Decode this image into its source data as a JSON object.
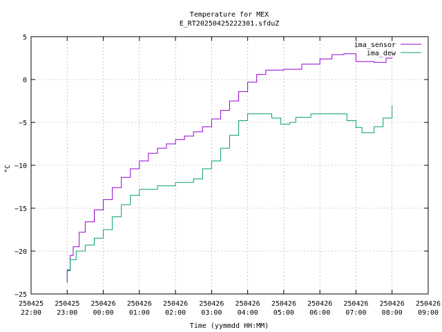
{
  "chart_data": {
    "type": "line",
    "title": "Temperature for MEX",
    "subtitle": "E_RT20250425222301.sfduZ",
    "xlabel": "Time (yymmdd HH:MM)",
    "ylabel": "°C",
    "ylim": [
      -25,
      5
    ],
    "xlim": [
      "2025-04-25 22:00",
      "2025-04-26 09:00"
    ],
    "y_ticks": [
      -25,
      -20,
      -15,
      -10,
      -5,
      0,
      5
    ],
    "x_ticks": [
      {
        "date": "250425",
        "time": "22:00"
      },
      {
        "date": "250425",
        "time": "23:00"
      },
      {
        "date": "250426",
        "time": "00:00"
      },
      {
        "date": "250426",
        "time": "01:00"
      },
      {
        "date": "250426",
        "time": "02:00"
      },
      {
        "date": "250426",
        "time": "03:00"
      },
      {
        "date": "250426",
        "time": "04:00"
      },
      {
        "date": "250426",
        "time": "05:00"
      },
      {
        "date": "250426",
        "time": "06:00"
      },
      {
        "date": "250426",
        "time": "07:00"
      },
      {
        "date": "250426",
        "time": "08:00"
      },
      {
        "date": "250426",
        "time": "09:00"
      }
    ],
    "grid": true,
    "legend_position": "top-right",
    "series": [
      {
        "name": "ima_sensor",
        "color": "#9400d3",
        "points": [
          [
            "2025-04-25 22:59",
            -23.6
          ],
          [
            "2025-04-25 23:00",
            -22.2
          ],
          [
            "2025-04-25 23:05",
            -20.5
          ],
          [
            "2025-04-25 23:10",
            -19.5
          ],
          [
            "2025-04-25 23:20",
            -17.8
          ],
          [
            "2025-04-25 23:30",
            -16.6
          ],
          [
            "2025-04-25 23:45",
            -15.2
          ],
          [
            "2025-04-26 00:00",
            -14.0
          ],
          [
            "2025-04-26 00:15",
            -12.6
          ],
          [
            "2025-04-26 00:30",
            -11.4
          ],
          [
            "2025-04-26 00:45",
            -10.4
          ],
          [
            "2025-04-26 01:00",
            -9.5
          ],
          [
            "2025-04-26 01:15",
            -8.6
          ],
          [
            "2025-04-26 01:30",
            -8.0
          ],
          [
            "2025-04-26 01:45",
            -7.5
          ],
          [
            "2025-04-26 02:00",
            -7.0
          ],
          [
            "2025-04-26 02:15",
            -6.6
          ],
          [
            "2025-04-26 02:30",
            -6.1
          ],
          [
            "2025-04-26 02:45",
            -5.5
          ],
          [
            "2025-04-26 03:00",
            -4.6
          ],
          [
            "2025-04-26 03:15",
            -3.6
          ],
          [
            "2025-04-26 03:30",
            -2.5
          ],
          [
            "2025-04-26 03:45",
            -1.4
          ],
          [
            "2025-04-26 04:00",
            -0.3
          ],
          [
            "2025-04-26 04:15",
            0.6
          ],
          [
            "2025-04-26 04:30",
            1.1
          ],
          [
            "2025-04-26 05:00",
            1.2
          ],
          [
            "2025-04-26 05:30",
            1.8
          ],
          [
            "2025-04-26 06:00",
            2.4
          ],
          [
            "2025-04-26 06:20",
            2.9
          ],
          [
            "2025-04-26 06:40",
            3.0
          ],
          [
            "2025-04-26 07:00",
            2.1
          ],
          [
            "2025-04-26 07:30",
            2.0
          ],
          [
            "2025-04-26 07:50",
            2.5
          ],
          [
            "2025-04-26 08:00",
            2.6
          ]
        ]
      },
      {
        "name": "ima_dew",
        "color": "#009e73",
        "points": [
          [
            "2025-04-25 22:59",
            -23.0
          ],
          [
            "2025-04-25 23:00",
            -22.3
          ],
          [
            "2025-04-25 23:05",
            -21.0
          ],
          [
            "2025-04-25 23:15",
            -20.0
          ],
          [
            "2025-04-25 23:30",
            -19.3
          ],
          [
            "2025-04-25 23:45",
            -18.5
          ],
          [
            "2025-04-26 00:00",
            -17.5
          ],
          [
            "2025-04-26 00:15",
            -16.0
          ],
          [
            "2025-04-26 00:30",
            -14.6
          ],
          [
            "2025-04-26 00:45",
            -13.5
          ],
          [
            "2025-04-26 01:00",
            -12.8
          ],
          [
            "2025-04-26 01:30",
            -12.4
          ],
          [
            "2025-04-26 02:00",
            -12.0
          ],
          [
            "2025-04-26 02:30",
            -11.6
          ],
          [
            "2025-04-26 02:45",
            -10.4
          ],
          [
            "2025-04-26 03:00",
            -9.5
          ],
          [
            "2025-04-26 03:15",
            -8.0
          ],
          [
            "2025-04-26 03:30",
            -6.5
          ],
          [
            "2025-04-26 03:45",
            -4.8
          ],
          [
            "2025-04-26 04:00",
            -4.0
          ],
          [
            "2025-04-26 04:20",
            -4.0
          ],
          [
            "2025-04-26 04:40",
            -4.5
          ],
          [
            "2025-04-26 04:55",
            -5.2
          ],
          [
            "2025-04-26 05:10",
            -5.0
          ],
          [
            "2025-04-26 05:20",
            -4.4
          ],
          [
            "2025-04-26 05:45",
            -4.0
          ],
          [
            "2025-04-26 06:15",
            -4.0
          ],
          [
            "2025-04-26 06:30",
            -4.0
          ],
          [
            "2025-04-26 06:45",
            -4.8
          ],
          [
            "2025-04-26 07:00",
            -5.6
          ],
          [
            "2025-04-26 07:10",
            -6.2
          ],
          [
            "2025-04-26 07:30",
            -5.5
          ],
          [
            "2025-04-26 07:45",
            -4.5
          ],
          [
            "2025-04-26 08:00",
            -3.0
          ]
        ]
      }
    ]
  }
}
